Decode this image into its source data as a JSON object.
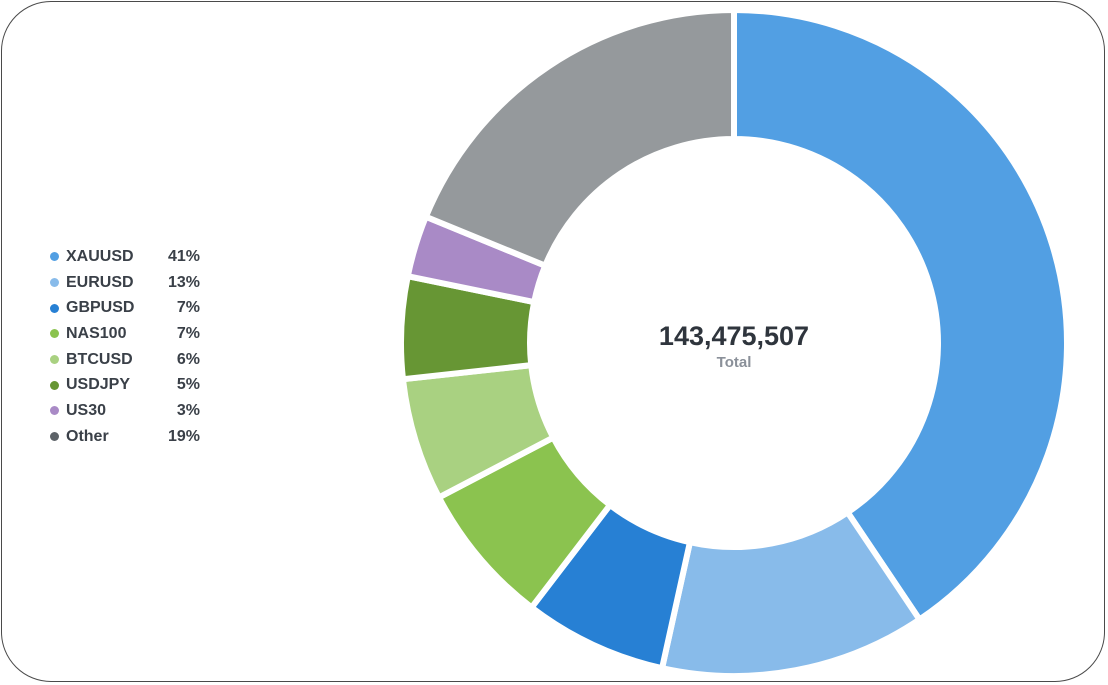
{
  "chart_data": {
    "type": "pie",
    "variant": "donut",
    "center": {
      "value": "143,475,507",
      "label": "Total"
    },
    "legend_position": "left",
    "slices": [
      {
        "name": "XAUUSD",
        "value": 41,
        "display": "41%",
        "color": "#529fe3"
      },
      {
        "name": "EURUSD",
        "value": 13,
        "display": "13%",
        "color": "#88bbea"
      },
      {
        "name": "GBPUSD",
        "value": 7,
        "display": "7%",
        "color": "#2780d4"
      },
      {
        "name": "NAS100",
        "value": 7,
        "display": "7%",
        "color": "#8bc34f"
      },
      {
        "name": "BTCUSD",
        "value": 6,
        "display": "6%",
        "color": "#a9d181"
      },
      {
        "name": "USDJPY",
        "value": 5,
        "display": "5%",
        "color": "#679634"
      },
      {
        "name": "US30",
        "value": 3,
        "display": "3%",
        "color": "#a98ac6"
      },
      {
        "name": "Other",
        "value": 19,
        "display": "19%",
        "color": "#95999c"
      }
    ]
  },
  "legend_dot_colors": {
    "Other": "#5d6368"
  }
}
